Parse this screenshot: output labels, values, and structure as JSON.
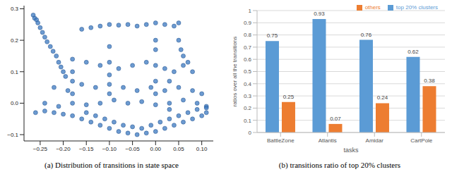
{
  "chart_data": [
    {
      "type": "scatter",
      "title": "(a) Distribution of transitions in state space",
      "color": "#3b78c0",
      "marker": "circle",
      "grid": false,
      "xlim": [
        -0.285,
        0.125
      ],
      "xticks": [
        {
          "value": -0.25,
          "label": "−0.25"
        },
        {
          "value": -0.2,
          "label": "−0.20"
        },
        {
          "value": -0.15,
          "label": "−0.15"
        },
        {
          "value": -0.1,
          "label": "−0.10"
        },
        {
          "value": -0.05,
          "label": "−0.05"
        },
        {
          "value": 0,
          "label": "0.00"
        },
        {
          "value": 0.05,
          "label": "0.05"
        },
        {
          "value": 0.1,
          "label": "0.10"
        }
      ],
      "ylim": [
        -0.12,
        0.31
      ],
      "yticks": [
        {
          "value": -0.1,
          "label": "−0.1"
        },
        {
          "value": 0,
          "label": "0.0"
        },
        {
          "value": 0.1,
          "label": "0.1"
        },
        {
          "value": 0.2,
          "label": "0.2"
        },
        {
          "value": 0.3,
          "label": "0.3"
        }
      ],
      "x": [
        -0.265,
        -0.262,
        -0.258,
        -0.255,
        -0.25,
        -0.245,
        -0.24,
        -0.235,
        -0.228,
        -0.222,
        -0.215,
        -0.21,
        -0.205,
        -0.2,
        -0.195,
        -0.16,
        -0.14,
        -0.12,
        -0.1,
        -0.08,
        -0.06,
        -0.04,
        -0.02,
        0.0,
        0.02,
        0.04,
        0.05,
        0.05,
        0.055,
        0.06,
        0.07,
        0.08,
        0.06,
        -0.18,
        -0.15,
        -0.12,
        -0.1,
        -0.08,
        -0.05,
        -0.02,
        0.0,
        0.02,
        0.04,
        -0.22,
        -0.19,
        -0.16,
        -0.13,
        -0.1,
        -0.07,
        -0.04,
        -0.01,
        0.02,
        0.05,
        0.08,
        0.1,
        -0.24,
        -0.21,
        -0.18,
        -0.15,
        -0.12,
        -0.09,
        -0.06,
        -0.03,
        0.0,
        0.03,
        0.06,
        0.09,
        0.11,
        -0.26,
        -0.24,
        -0.22,
        -0.2,
        -0.18,
        -0.16,
        -0.14,
        -0.12,
        -0.1,
        -0.08,
        -0.06,
        -0.04,
        -0.02,
        0.0,
        0.02,
        0.04,
        0.06,
        0.08,
        0.1,
        0.11,
        -0.15,
        -0.13,
        -0.11,
        -0.09,
        -0.07,
        -0.05,
        -0.03,
        -0.01,
        0.01,
        0.03,
        0.05,
        0.07,
        0.09,
        0.11,
        -0.18,
        -0.18,
        -0.18,
        0.0,
        0.0,
        0.0,
        0.0,
        -0.1,
        -0.1,
        -0.1,
        0.03,
        0.03
      ],
      "values": [
        0.28,
        0.27,
        0.265,
        0.255,
        0.24,
        0.225,
        0.21,
        0.195,
        0.18,
        0.165,
        0.15,
        0.13,
        0.115,
        0.1,
        0.085,
        0.235,
        0.24,
        0.245,
        0.25,
        0.248,
        0.25,
        0.245,
        0.25,
        0.255,
        0.25,
        0.245,
        0.255,
        0.2,
        0.17,
        0.15,
        0.13,
        0.1,
        0.12,
        0.14,
        0.13,
        0.12,
        0.13,
        0.11,
        0.12,
        0.13,
        0.12,
        0.11,
        0.1,
        0.05,
        0.04,
        0.06,
        0.05,
        0.06,
        0.05,
        0.04,
        0.05,
        0.04,
        0.05,
        0.04,
        0.03,
        0.0,
        -0.01,
        0.0,
        -0.005,
        0.0,
        0.01,
        0.0,
        0.005,
        -0.005,
        0.0,
        0.01,
        0.0,
        -0.01,
        -0.03,
        -0.025,
        -0.03,
        -0.035,
        -0.04,
        -0.05,
        -0.06,
        -0.07,
        -0.08,
        -0.09,
        -0.095,
        -0.1,
        -0.095,
        -0.09,
        -0.08,
        -0.07,
        -0.06,
        -0.05,
        -0.04,
        -0.03,
        -0.03,
        -0.04,
        -0.05,
        -0.06,
        -0.07,
        -0.075,
        -0.08,
        -0.07,
        -0.06,
        -0.05,
        -0.04,
        -0.03,
        -0.02,
        -0.015,
        0.03,
        0.07,
        0.1,
        0.03,
        0.07,
        0.17,
        0.2,
        0.03,
        0.09,
        0.18,
        -0.02,
        0.07
      ]
    },
    {
      "type": "bar",
      "title": "(b) transitions ratio of top 20% clusters",
      "x_label": "tasks",
      "y_label": "ratios over all the transitions",
      "categories": [
        "BattleZone",
        "Atlantis",
        "Amidar",
        "CartPole"
      ],
      "series": [
        {
          "name": "top 20% clusters",
          "color": "#5b9bd5",
          "values": [
            0.75,
            0.93,
            0.76,
            0.62
          ]
        },
        {
          "name": "others",
          "color": "#ed7d31",
          "values": [
            0.25,
            0.07,
            0.24,
            0.38
          ]
        }
      ],
      "ylim": [
        0,
        1
      ],
      "yticks": [
        0,
        0.1,
        0.2,
        0.3,
        0.4,
        0.5,
        0.6,
        0.7,
        0.8,
        0.9,
        1
      ],
      "grid": true,
      "legend": "top",
      "data_labels": true
    }
  ]
}
